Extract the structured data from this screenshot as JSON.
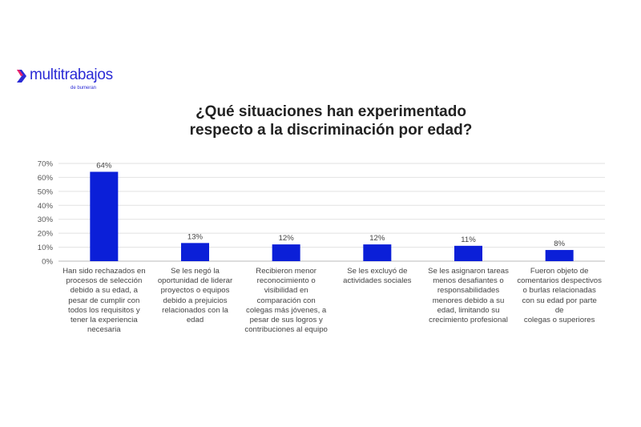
{
  "logo": {
    "name": "multitrabajos",
    "sub": "de bumeran"
  },
  "chart_data": {
    "type": "bar",
    "title": "¿Qué situaciones han experimentado respecto a la discriminación por edad?",
    "title_lines": [
      "¿Qué situaciones han experimentado",
      "respecto a la discriminación por edad?"
    ],
    "categories": [
      [
        "Han sido rechazados en",
        "procesos de selección",
        "debido a su edad, a",
        "pesar de cumplir con",
        "todos los requisitos y",
        "tener la experiencia",
        "necesaria"
      ],
      [
        "Se les negó la",
        "oportunidad de liderar",
        "proyectos o equipos",
        "debido a prejuicios",
        "relacionados con la edad"
      ],
      [
        "Recibieron menor",
        "reconocimiento o",
        "visibilidad en",
        "comparación con",
        "colegas más jóvenes, a",
        "pesar de sus logros y",
        "contribuciones al equipo"
      ],
      [
        "Se les excluyó de",
        "actividades sociales"
      ],
      [
        "Se les asignaron tareas",
        "menos desafiantes o",
        "responsabilidades",
        "menores debido a su",
        "edad, limitando su",
        "crecimiento profesional"
      ],
      [
        "Fueron objeto de",
        "comentarios despectivos",
        "o burlas relacionadas",
        "con su edad por parte de",
        "colegas o superiores"
      ]
    ],
    "values": [
      64,
      13,
      12,
      12,
      11,
      8
    ],
    "data_labels": [
      "64%",
      "13%",
      "12%",
      "12%",
      "11%",
      "8%"
    ],
    "yticks": [
      "0%",
      "10%",
      "20%",
      "30%",
      "40%",
      "50%",
      "60%",
      "70%"
    ],
    "ylim": [
      0,
      70
    ],
    "grid": true,
    "bar_color": "#0b1fd8"
  }
}
